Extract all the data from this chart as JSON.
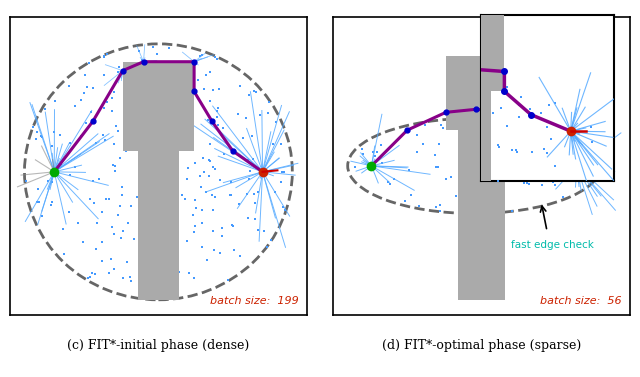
{
  "fig_width": 6.4,
  "fig_height": 3.77,
  "dpi": 100,
  "bg_color": "#ffffff",
  "panel_border_color": "#000000",
  "obstacle_color": "#aaaaaa",
  "ellipse_color": "#666666",
  "path_color": "#880088",
  "tree_edge_color": "#55aaff",
  "sample_color": "#4499ff",
  "start_color": "#00aa00",
  "goal_color": "#cc2200",
  "node_color": "#0000cc",
  "fast_edge_color": "#00bbaa",
  "batch_size_color": "#cc2200",
  "red_segment_color": "#cc0000",
  "left_caption": "(c) FIT*-initial phase (dense)",
  "right_caption": "(d) FIT*-optimal phase (sparse)",
  "left_batch": "batch size:  199",
  "right_batch": "batch size:  56"
}
